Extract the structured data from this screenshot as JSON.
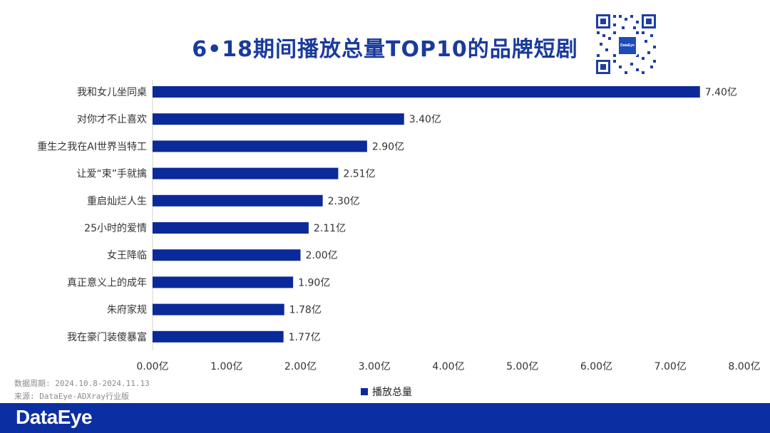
{
  "title": "6•18期间播放总量TOP10的品牌短剧",
  "qr_logo": "DataEye",
  "legend_label": "播放总量",
  "notes": {
    "period": "数据周期: 2024.10.8-2024.11.13",
    "source": "来源: DataEye-ADXray行业版"
  },
  "brand": "DataEye",
  "colors": {
    "bar": "#0a2a9a",
    "title": "#1a3a9c",
    "footer": "#0b2fa2"
  },
  "chart_data": {
    "type": "bar",
    "orientation": "horizontal",
    "title": "6•18期间播放总量TOP10的品牌短剧",
    "categories": [
      "我和女儿坐同桌",
      "对你才不止喜欢",
      "重生之我在AI世界当特工",
      "让爱“束”手就擒",
      "重启灿烂人生",
      "25小时的爱情",
      "女王降临",
      "真正意义上的成年",
      "朱府家规",
      "我在豪门装傻暴富"
    ],
    "series": [
      {
        "name": "播放总量",
        "values": [
          7.4,
          3.4,
          2.9,
          2.51,
          2.3,
          2.11,
          2.0,
          1.9,
          1.78,
          1.77
        ]
      }
    ],
    "data_labels": [
      "7.40亿",
      "3.40亿",
      "2.90亿",
      "2.51亿",
      "2.30亿",
      "2.11亿",
      "2.00亿",
      "1.90亿",
      "1.78亿",
      "1.77亿"
    ],
    "x_ticks": [
      0,
      1,
      2,
      3,
      4,
      5,
      6,
      7,
      8
    ],
    "x_tick_labels": [
      "0.00亿",
      "1.00亿",
      "2.00亿",
      "3.00亿",
      "4.00亿",
      "5.00亿",
      "6.00亿",
      "7.00亿",
      "8.00亿"
    ],
    "xlim": [
      0,
      8
    ],
    "grid": false,
    "legend_position": "bottom"
  }
}
